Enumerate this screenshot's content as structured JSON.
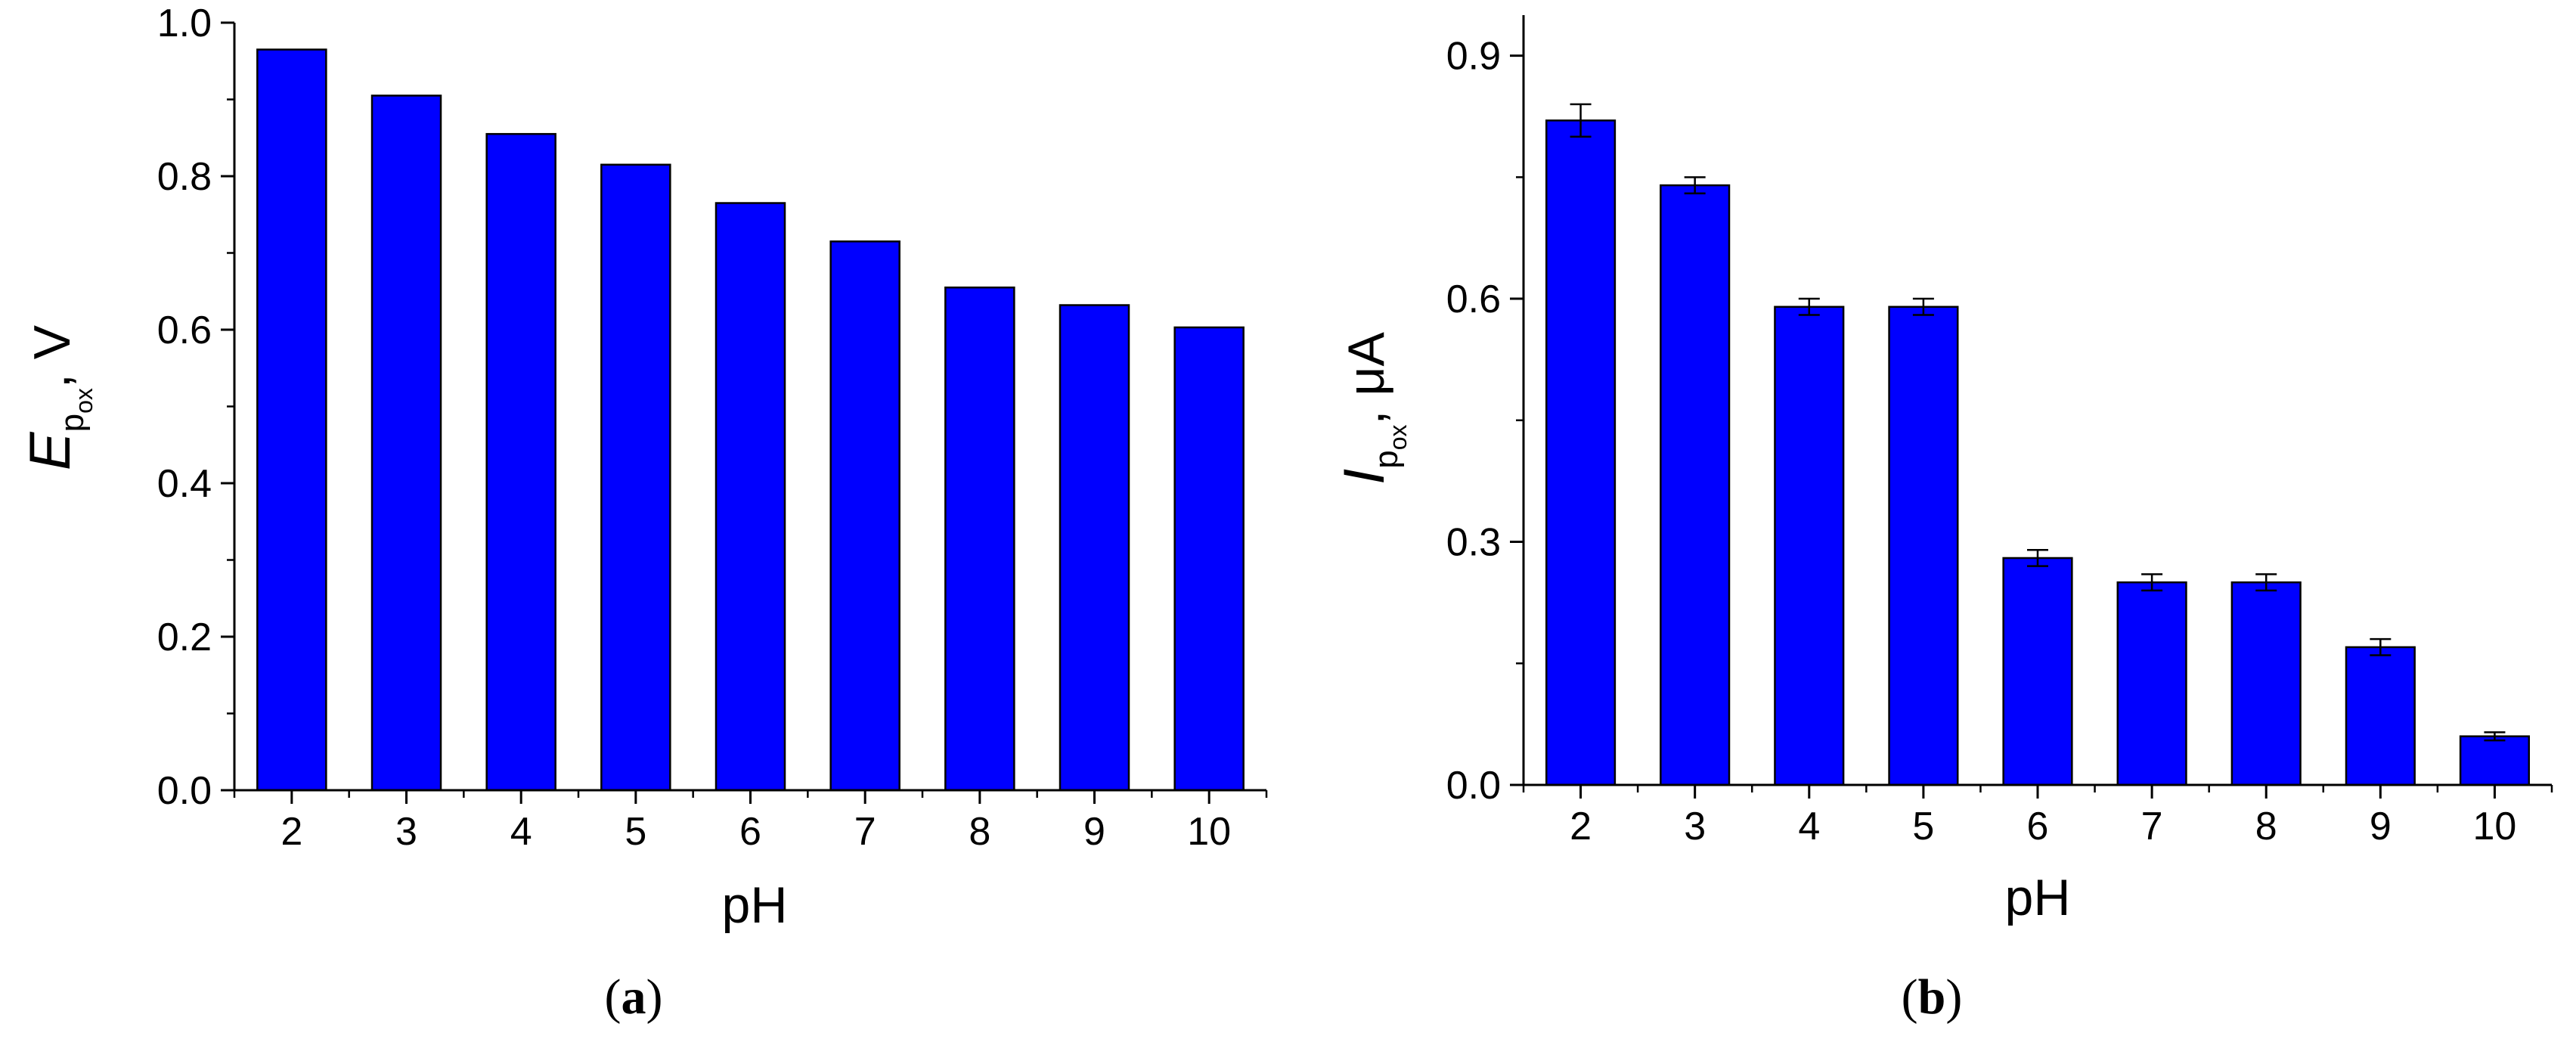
{
  "chart_data": [
    {
      "type": "bar",
      "panel_label": "a",
      "categories": [
        "2",
        "3",
        "4",
        "5",
        "6",
        "7",
        "8",
        "9",
        "10"
      ],
      "values": [
        0.965,
        0.905,
        0.855,
        0.815,
        0.765,
        0.715,
        0.655,
        0.632,
        0.603
      ],
      "xlabel": "pH",
      "ylabel": {
        "main": "E",
        "sub": "p",
        "subsub": "ox",
        "unit": ", V"
      },
      "ylim": [
        0,
        1.0
      ],
      "yticks": [
        "0.0",
        "0.2",
        "0.4",
        "0.6",
        "0.8",
        "1.0"
      ],
      "yminor": true,
      "bar_color": "#0000ff",
      "error_bars": false,
      "grid": false
    },
    {
      "type": "bar",
      "panel_label": "b",
      "categories": [
        "2",
        "3",
        "4",
        "5",
        "6",
        "7",
        "8",
        "9",
        "10"
      ],
      "values": [
        0.82,
        0.74,
        0.59,
        0.59,
        0.28,
        0.25,
        0.25,
        0.17,
        0.06
      ],
      "errors": [
        0.02,
        0.01,
        0.01,
        0.01,
        0.01,
        0.01,
        0.01,
        0.01,
        0.005
      ],
      "xlabel": "pH",
      "ylabel": {
        "main": "I",
        "sub": "p",
        "subsub": "ox",
        "unit": ", μA"
      },
      "ylim": [
        0,
        0.95
      ],
      "yticks": [
        "0.0",
        "0.3",
        "0.6",
        "0.9"
      ],
      "yminor": true,
      "bar_color": "#0000ff",
      "error_bars": true,
      "grid": false
    }
  ]
}
